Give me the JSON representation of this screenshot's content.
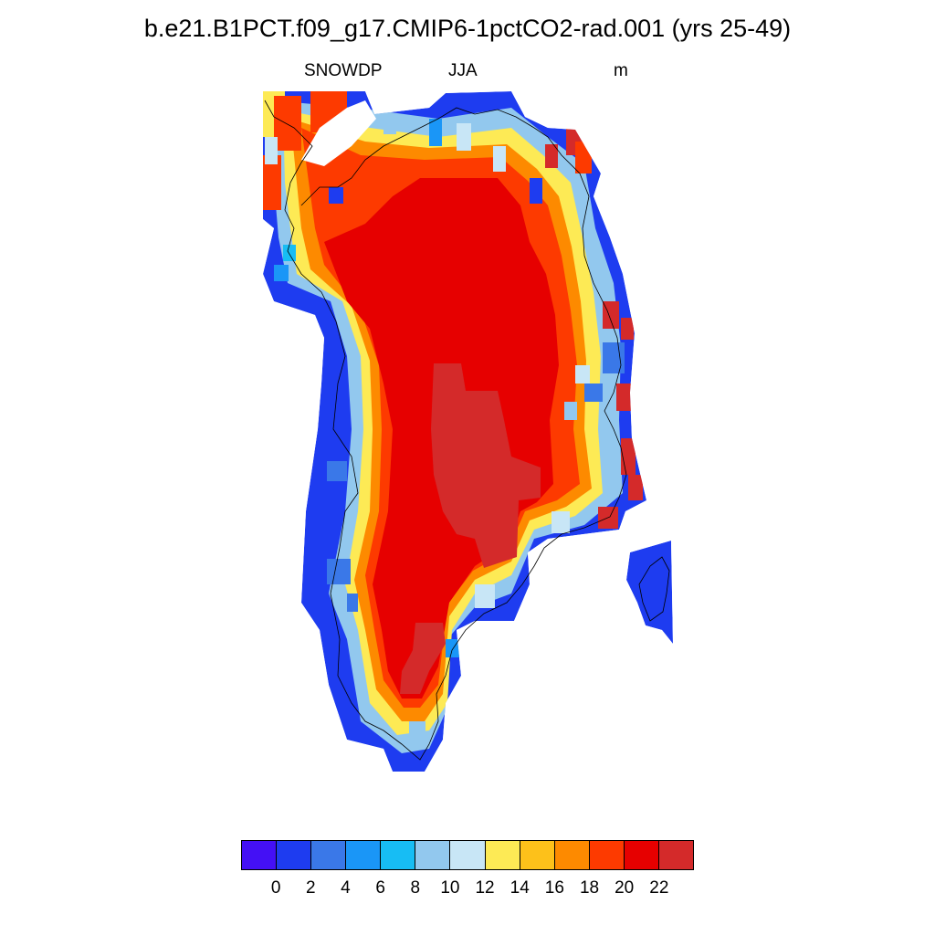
{
  "title": "b.e21.B1PCT.f09_g17.CMIP6-1pctCO2-rad.001 (yrs 25-49)",
  "subtitle": {
    "left": "SNOWDP",
    "center": "JJA",
    "right": "m"
  },
  "colorbar": {
    "colors": [
      "#4410f5",
      "#1e3cf0",
      "#3a78e8",
      "#1a96f7",
      "#17bdf4",
      "#92c8ee",
      "#c8e6f6",
      "#fdea55",
      "#fdc11a",
      "#fd8a00",
      "#fd3a00",
      "#e60000",
      "#d42a2a"
    ],
    "labels": [
      "0",
      "2",
      "4",
      "6",
      "8",
      "10",
      "12",
      "14",
      "16",
      "18",
      "20",
      "22"
    ]
  },
  "map_data": {
    "variable": "SNOWDP",
    "season": "JJA",
    "units": "m",
    "region": "Greenland",
    "dominant_interior_class": "20-22",
    "peak_class": ">22",
    "coastal_class": "0-2"
  }
}
